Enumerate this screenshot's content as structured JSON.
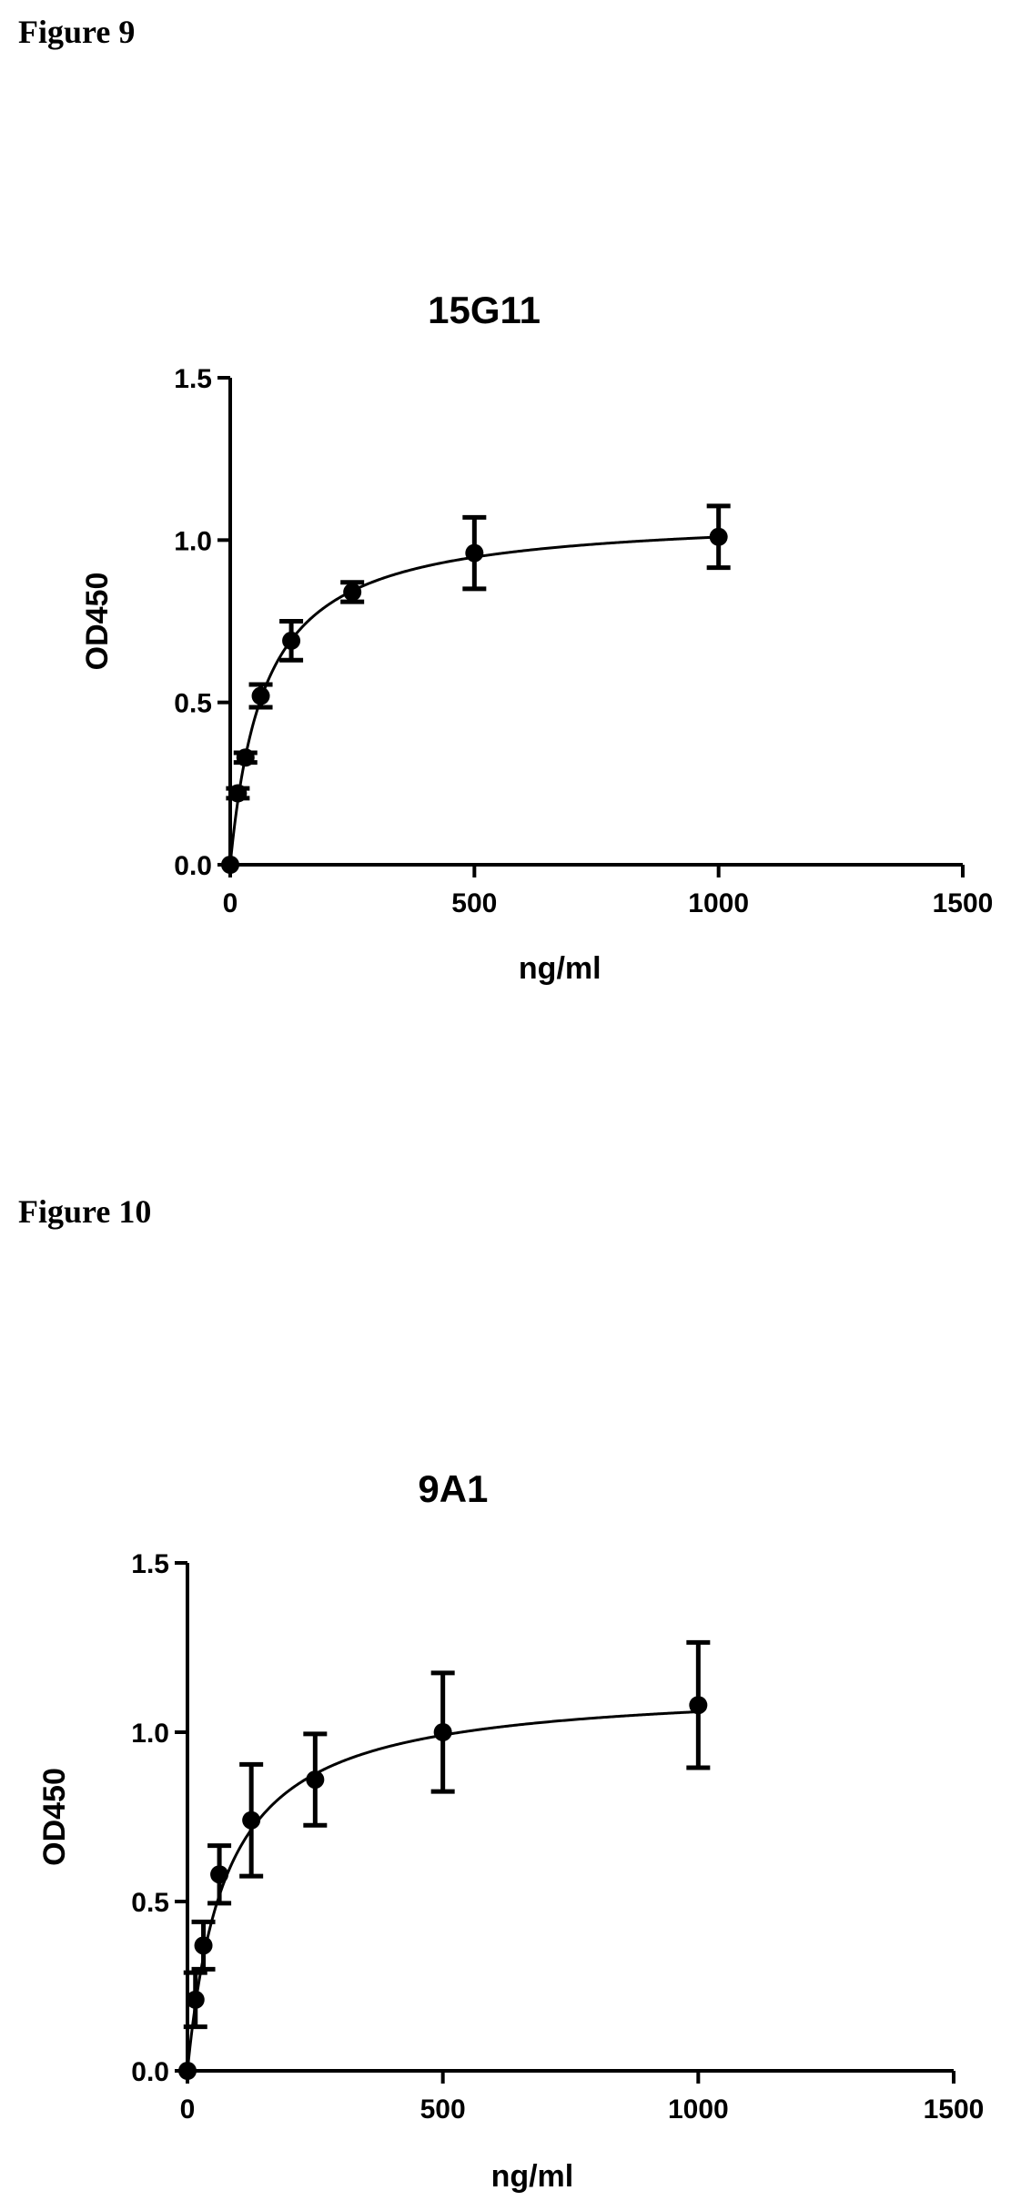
{
  "figures": [
    {
      "caption": "Figure 9"
    },
    {
      "caption": "Figure 10"
    }
  ],
  "chart_data": [
    {
      "type": "scatter",
      "title": "15G11",
      "xlabel": "ng/ml",
      "ylabel": "OD450",
      "xlim": [
        0,
        1500
      ],
      "ylim": [
        0,
        1.5
      ],
      "xticks": [
        "0",
        "500",
        "1000",
        "1500"
      ],
      "yticks": [
        "0.0",
        "0.5",
        "1.0",
        "1.5"
      ],
      "grid": false,
      "series": [
        {
          "x": [
            0,
            15.6,
            31.25,
            62.5,
            125,
            250,
            500,
            1000
          ],
          "y": [
            0.0,
            0.22,
            0.33,
            0.52,
            0.69,
            0.84,
            0.96,
            1.01
          ],
          "error": [
            0.0,
            0.015,
            0.015,
            0.035,
            0.06,
            0.03,
            0.11,
            0.095
          ]
        }
      ],
      "fit": {
        "type": "one-site saturation",
        "bmax": 1.08,
        "kd": 70
      }
    },
    {
      "type": "scatter",
      "title": "9A1",
      "xlabel": "ng/ml",
      "ylabel": "OD450",
      "xlim": [
        0,
        1500
      ],
      "ylim": [
        0,
        1.5
      ],
      "xticks": [
        "0",
        "500",
        "1000",
        "1500"
      ],
      "yticks": [
        "0.0",
        "0.5",
        "1.0",
        "1.5"
      ],
      "grid": false,
      "series": [
        {
          "x": [
            0,
            15.6,
            31.25,
            62.5,
            125,
            250,
            500,
            1000
          ],
          "y": [
            0.0,
            0.21,
            0.37,
            0.58,
            0.74,
            0.86,
            1.0,
            1.08
          ],
          "error": [
            0.0,
            0.08,
            0.07,
            0.085,
            0.165,
            0.135,
            0.175,
            0.185
          ]
        }
      ],
      "fit": {
        "type": "one-site saturation",
        "bmax": 1.14,
        "kd": 75
      }
    }
  ]
}
